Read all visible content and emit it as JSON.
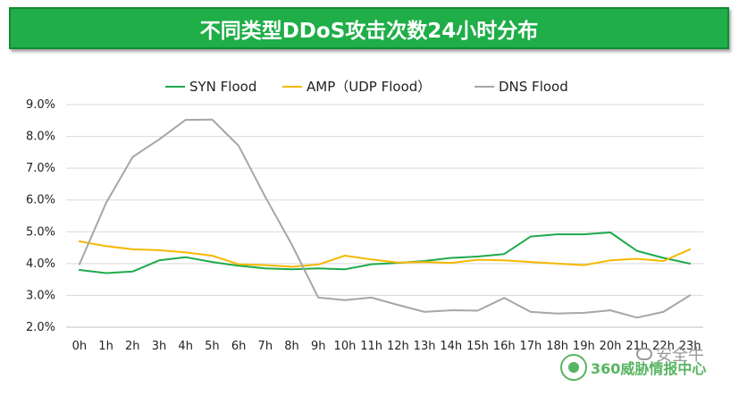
{
  "banner": {
    "title": "不同类型DDoS攻击次数24小时分布",
    "bg_color": "#1fae48"
  },
  "chart_data": {
    "type": "line",
    "title": "不同类型DDoS攻击次数24小时分布",
    "xlabel": "",
    "ylabel": "",
    "categories": [
      "0h",
      "1h",
      "2h",
      "3h",
      "4h",
      "5h",
      "6h",
      "7h",
      "8h",
      "9h",
      "10h",
      "11h",
      "12h",
      "13h",
      "14h",
      "15h",
      "16h",
      "17h",
      "18h",
      "19h",
      "20h",
      "21h",
      "22h",
      "23h"
    ],
    "ylim": [
      2.0,
      9.0
    ],
    "yticks": [
      "2.0%",
      "3.0%",
      "4.0%",
      "5.0%",
      "6.0%",
      "7.0%",
      "8.0%",
      "9.0%"
    ],
    "grid": "horizontal",
    "legend_position": "top",
    "series": [
      {
        "name": "SYN Flood",
        "color": "#1faa4b",
        "values": [
          3.8,
          3.7,
          3.75,
          4.1,
          4.2,
          4.05,
          3.93,
          3.85,
          3.82,
          3.85,
          3.82,
          3.98,
          4.02,
          4.08,
          4.18,
          4.22,
          4.3,
          4.85,
          4.92,
          4.92,
          4.98,
          4.4,
          4.18,
          4.0
        ]
      },
      {
        "name": "AMP（UDP Flood）",
        "color": "#f5b800",
        "values": [
          4.7,
          4.55,
          4.45,
          4.42,
          4.35,
          4.25,
          3.98,
          3.95,
          3.9,
          3.97,
          4.25,
          4.13,
          4.03,
          4.05,
          4.02,
          4.12,
          4.1,
          4.05,
          4.0,
          3.95,
          4.1,
          4.15,
          4.08,
          4.45
        ]
      },
      {
        "name": "DNS Flood",
        "color": "#a6a6a6",
        "values": [
          3.98,
          5.9,
          7.35,
          7.9,
          8.52,
          8.53,
          7.7,
          6.1,
          4.6,
          2.93,
          2.85,
          2.93,
          2.7,
          2.48,
          2.53,
          2.52,
          2.92,
          2.48,
          2.43,
          2.45,
          2.53,
          2.3,
          2.48,
          3.0
        ]
      }
    ]
  },
  "watermark": {
    "org_text": "360威胁情报中心",
    "wechat_text": "安全牛"
  }
}
